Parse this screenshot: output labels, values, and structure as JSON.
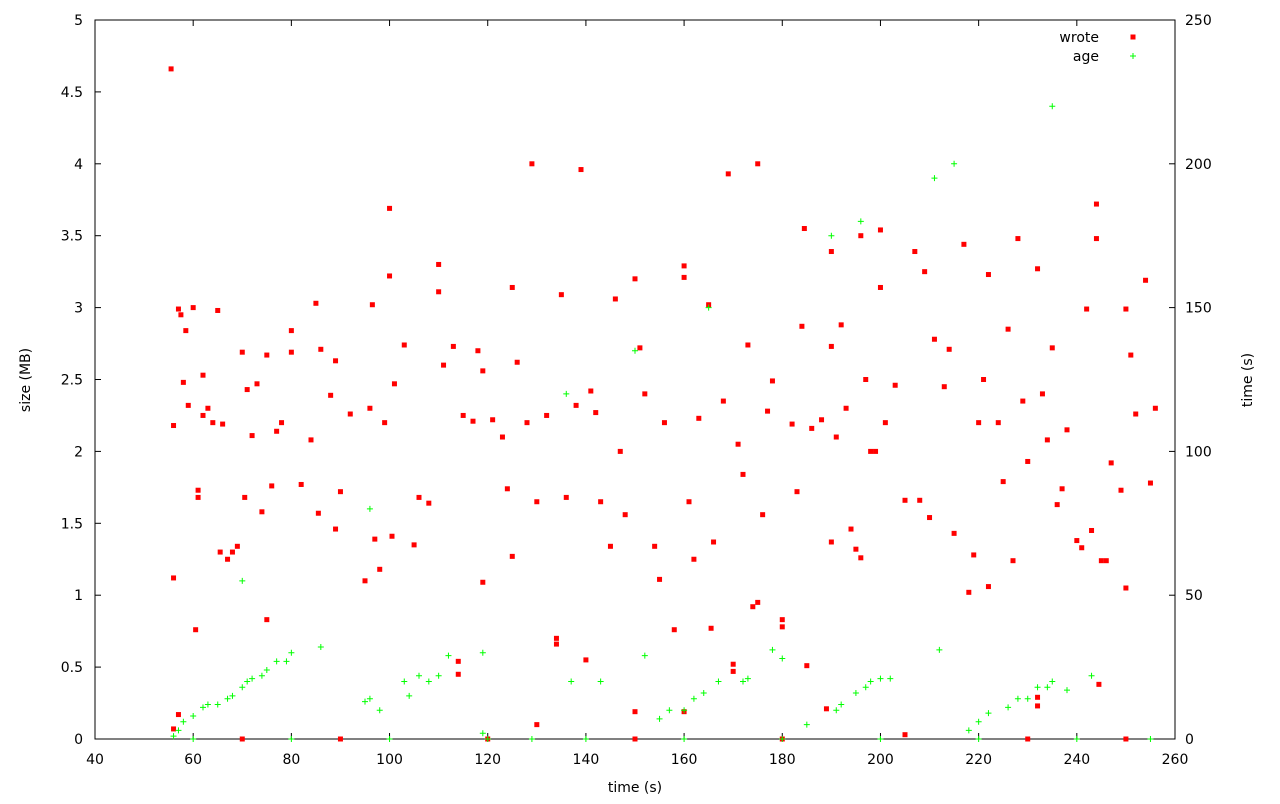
{
  "chart_data": {
    "type": "scatter",
    "x_label": "time (s)",
    "y_label": "size (MB)",
    "y2_label": "time (s)",
    "xlim": [
      40,
      260
    ],
    "xticks": [
      40,
      60,
      80,
      100,
      120,
      140,
      160,
      180,
      200,
      220,
      240,
      260
    ],
    "ylim": [
      0,
      5
    ],
    "yticks": [
      0,
      0.5,
      1,
      1.5,
      2,
      2.5,
      3,
      3.5,
      4,
      4.5,
      5
    ],
    "y2lim": [
      0,
      250
    ],
    "y2ticks": [
      0,
      50,
      100,
      150,
      200,
      250
    ],
    "grid": false,
    "legend": "top-right",
    "series": [
      {
        "name": "wrote",
        "color": "#ff0000",
        "marker": "square",
        "x": [
          55.5,
          56,
          56,
          57,
          57.5,
          58,
          58.5,
          59,
          60,
          60.5,
          61,
          61,
          62,
          62,
          63,
          64,
          65,
          65.5,
          66,
          67,
          68,
          69,
          70,
          70.5,
          71,
          72,
          73,
          74,
          75,
          75,
          76,
          77,
          78,
          80,
          80,
          82,
          84,
          85,
          85.5,
          86,
          88,
          89,
          89,
          90,
          92,
          95,
          96,
          96.5,
          97,
          98,
          99,
          100,
          100,
          100.5,
          101,
          103,
          105,
          106,
          108,
          110,
          110,
          111,
          113,
          114,
          114,
          115,
          117,
          118,
          119,
          119,
          121,
          123,
          124,
          125,
          125,
          126,
          128,
          129,
          130,
          130,
          132,
          134,
          134,
          135,
          136,
          138,
          139,
          140,
          141,
          142,
          143,
          145,
          146,
          147,
          148,
          150,
          150,
          151,
          152,
          154,
          155,
          156,
          158,
          160,
          160,
          160,
          161,
          162,
          163,
          165,
          165.5,
          166,
          168,
          169,
          170,
          170,
          171,
          172,
          173,
          174,
          175,
          175,
          176,
          177,
          178,
          180,
          180,
          182,
          183,
          184,
          184.5,
          185,
          186,
          188,
          189,
          190,
          190,
          190,
          191,
          192,
          193,
          194,
          195,
          196,
          196,
          197,
          198,
          199,
          200,
          200,
          201,
          203,
          205,
          207,
          208,
          209,
          210,
          211,
          213,
          214,
          215,
          217,
          218,
          219,
          220,
          221,
          222,
          222,
          224,
          225,
          226,
          227,
          228,
          229,
          230,
          232,
          232,
          232,
          233,
          234,
          235,
          236,
          237,
          238,
          240,
          241,
          242,
          243,
          244,
          244,
          244.5,
          245,
          246,
          247,
          249,
          250,
          250,
          251,
          252,
          254,
          255,
          256,
          56,
          57,
          70,
          90,
          120,
          150,
          180,
          205,
          230,
          250
        ],
        "values": [
          4.66,
          1.12,
          2.18,
          2.99,
          2.95,
          2.48,
          2.84,
          2.32,
          3.0,
          0.76,
          1.73,
          1.68,
          2.53,
          2.25,
          2.3,
          2.2,
          2.98,
          1.3,
          2.19,
          1.25,
          1.3,
          1.34,
          2.69,
          1.68,
          2.43,
          2.11,
          2.47,
          1.58,
          0.83,
          2.67,
          1.76,
          2.14,
          2.2,
          2.84,
          2.69,
          1.77,
          2.08,
          3.03,
          1.57,
          2.71,
          2.39,
          1.46,
          2.63,
          1.72,
          2.26,
          1.1,
          2.3,
          3.02,
          1.39,
          1.18,
          2.2,
          3.69,
          3.22,
          1.41,
          2.47,
          2.74,
          1.35,
          1.68,
          1.64,
          3.3,
          3.11,
          2.6,
          2.73,
          0.54,
          0.45,
          2.25,
          2.21,
          2.7,
          1.09,
          2.56,
          2.22,
          2.1,
          1.74,
          3.14,
          1.27,
          2.62,
          2.2,
          4.0,
          0.1,
          1.65,
          2.25,
          0.7,
          0.66,
          3.09,
          1.68,
          2.32,
          3.96,
          0.55,
          2.42,
          2.27,
          1.65,
          1.34,
          3.06,
          2.0,
          1.56,
          3.2,
          0.19,
          2.72,
          2.4,
          1.34,
          1.11,
          2.2,
          0.76,
          3.29,
          3.21,
          0.19,
          1.65,
          1.25,
          2.23,
          3.02,
          0.77,
          1.37,
          2.35,
          3.93,
          0.52,
          0.47,
          2.05,
          1.84,
          2.74,
          0.92,
          4.0,
          0.95,
          1.56,
          2.28,
          2.49,
          0.83,
          0.78,
          2.19,
          1.72,
          2.87,
          3.55,
          0.51,
          2.16,
          2.22,
          0.21,
          3.39,
          2.73,
          1.37,
          2.1,
          2.88,
          2.3,
          1.46,
          1.32,
          3.5,
          1.26,
          2.5,
          2.0,
          2.0,
          3.54,
          3.14,
          2.2,
          2.46,
          1.66,
          3.39,
          1.66,
          3.25,
          1.54,
          2.78,
          2.45,
          2.71,
          1.43,
          3.44,
          1.02,
          1.28,
          2.2,
          2.5,
          1.06,
          3.23,
          2.2,
          1.79,
          2.85,
          1.24,
          3.48,
          2.35,
          1.93,
          0.29,
          0.23,
          3.27,
          2.4,
          2.08,
          2.72,
          1.63,
          1.74,
          2.15,
          1.38,
          1.33,
          2.99,
          1.45,
          3.72,
          3.48,
          0.38,
          1.24,
          1.24,
          1.92,
          1.73,
          1.05,
          2.99,
          2.67,
          2.26,
          3.19,
          1.78,
          2.3,
          0.07,
          0.17,
          0,
          0,
          0,
          0,
          0,
          0.03,
          0,
          0
        ]
      },
      {
        "name": "age",
        "color": "#00ff00",
        "marker": "plus",
        "axis": "y2",
        "x": [
          56,
          57,
          58,
          60,
          62,
          63,
          65,
          67,
          68,
          70,
          70,
          71,
          72,
          74,
          75,
          77,
          79,
          80,
          86,
          95,
          96,
          96,
          98,
          103,
          104,
          106,
          108,
          110,
          112,
          119,
          119,
          129,
          136,
          137,
          143,
          150,
          152,
          155,
          157,
          160,
          162,
          164,
          165,
          167,
          172,
          173,
          178,
          180,
          185,
          190,
          191,
          192,
          195,
          196,
          197,
          198,
          200,
          202,
          211,
          212,
          215,
          218,
          220,
          222,
          226,
          228,
          230,
          232,
          234,
          235,
          235,
          238,
          243,
          60,
          80,
          100,
          120,
          140,
          160,
          180,
          200,
          220,
          240,
          255
        ],
        "values": [
          1,
          3,
          6,
          8,
          11,
          12,
          12,
          14,
          15,
          18,
          55,
          20,
          21,
          22,
          24,
          27,
          27,
          30,
          32,
          13,
          80,
          14,
          10,
          20,
          15,
          22,
          20,
          22,
          29,
          30,
          2,
          0,
          120,
          20,
          20,
          135,
          29,
          7,
          10,
          10,
          14,
          16,
          150,
          20,
          20,
          21,
          31,
          28,
          5,
          175,
          10,
          12,
          16,
          180,
          18,
          20,
          21,
          21,
          195,
          31,
          200,
          3,
          6,
          9,
          11,
          14,
          14,
          18,
          18,
          220,
          20,
          17,
          22,
          0,
          0,
          0,
          0,
          0,
          0,
          0,
          0,
          0,
          0,
          0
        ]
      }
    ]
  }
}
